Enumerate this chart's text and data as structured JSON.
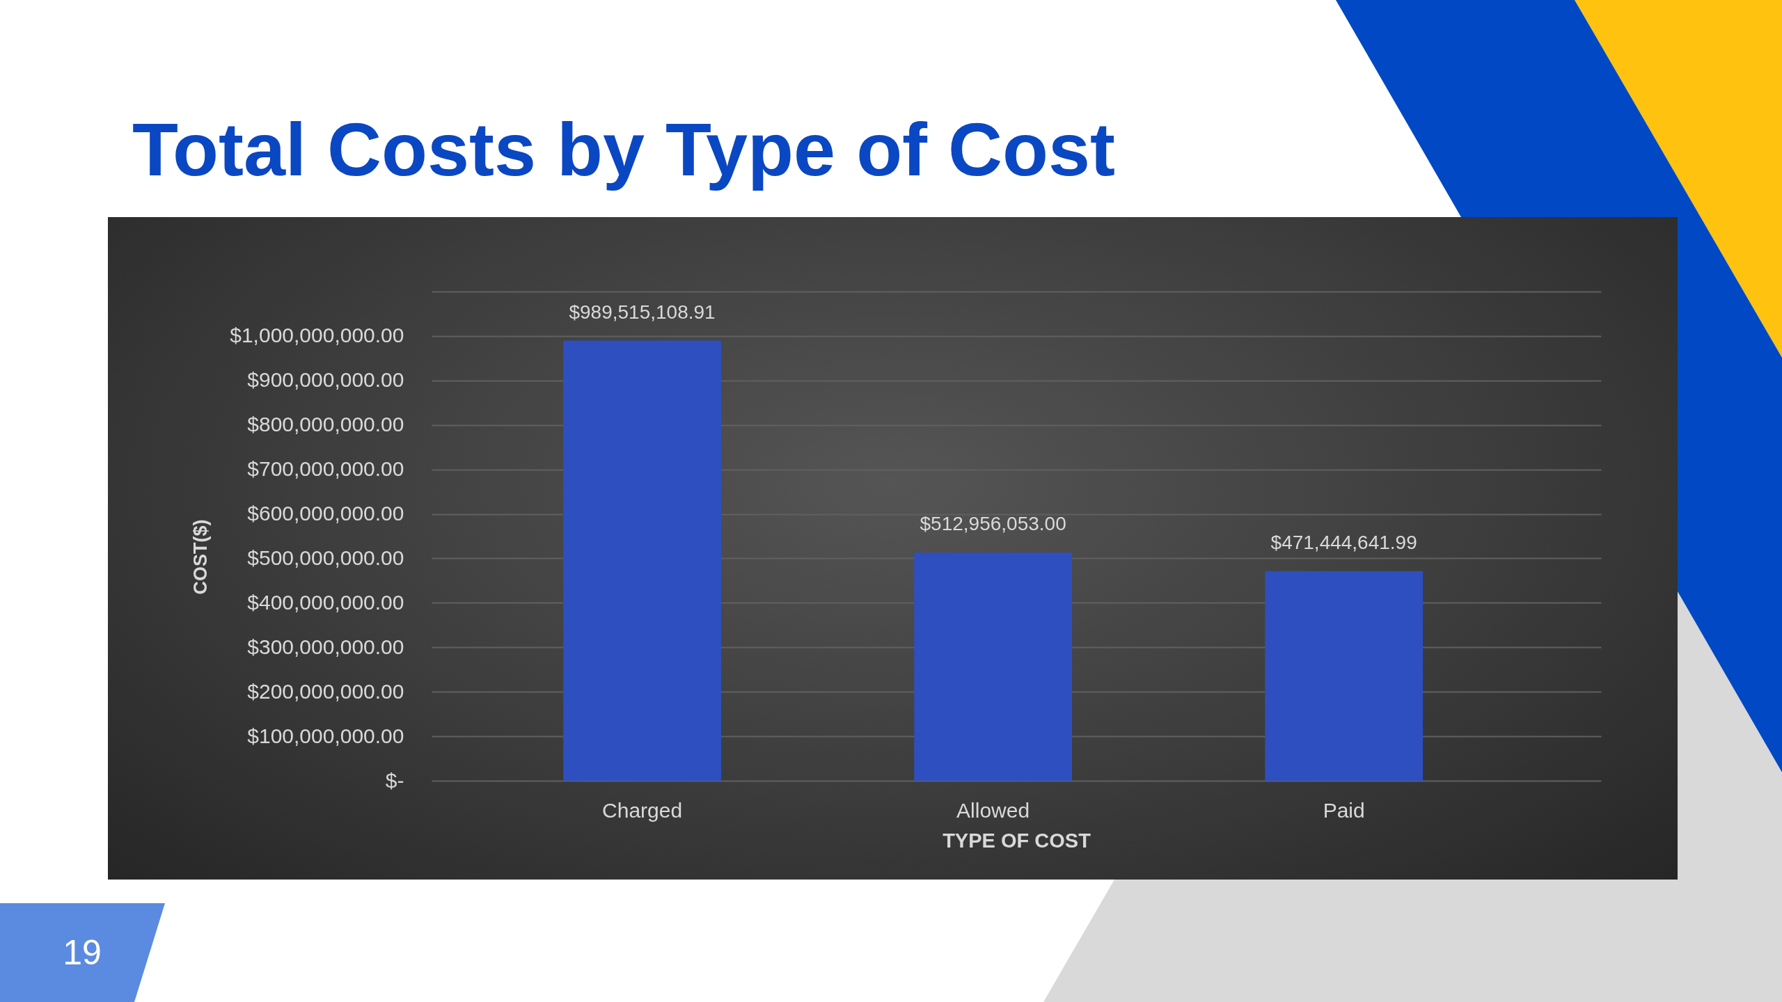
{
  "chart_data": {
    "type": "bar",
    "title": "Total Costs by Type of Cost",
    "xlabel": "TYPE OF COST",
    "ylabel": "COST($)",
    "categories": [
      "Charged",
      "Allowed",
      "Paid"
    ],
    "values": [
      989515108.91,
      512956053.0,
      471444641.99
    ],
    "value_labels": [
      "$989,515,108.91",
      "$512,956,053.00",
      "$471,444,641.99"
    ],
    "color": "#2e4fc0",
    "ylim": [
      0,
      1100000000
    ],
    "yticks": [
      {
        "value": 0,
        "label": "$-"
      },
      {
        "value": 100000000,
        "label": "$100,000,000.00"
      },
      {
        "value": 200000000,
        "label": "$200,000,000.00"
      },
      {
        "value": 300000000,
        "label": "$300,000,000.00"
      },
      {
        "value": 400000000,
        "label": "$400,000,000.00"
      },
      {
        "value": 500000000,
        "label": "$500,000,000.00"
      },
      {
        "value": 600000000,
        "label": "$600,000,000.00"
      },
      {
        "value": 700000000,
        "label": "$700,000,000.00"
      },
      {
        "value": 800000000,
        "label": "$800,000,000.00"
      },
      {
        "value": 900000000,
        "label": "$900,000,000.00"
      },
      {
        "value": 1000000000,
        "label": "$1,000,000,000.00"
      },
      {
        "value": 1100000000,
        "label": null
      }
    ],
    "grid": "y",
    "annotations": [
      "19"
    ]
  }
}
